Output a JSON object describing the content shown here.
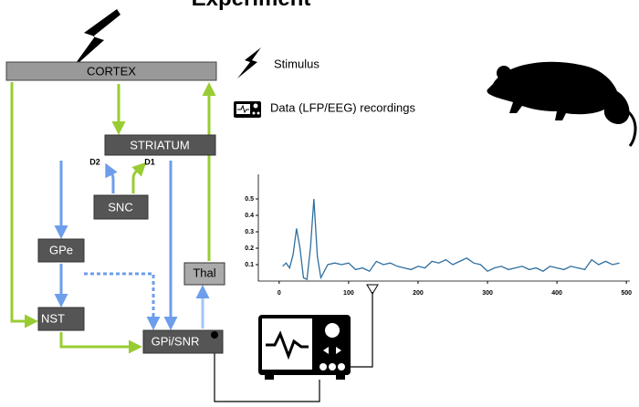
{
  "title": "Experiment",
  "nodes": {
    "cortex": "CORTEX",
    "striatum": "STRIATUM",
    "d2": "D2",
    "d1": "D1",
    "snc": "SNC",
    "gpe": "GPe",
    "nst": "NST",
    "gpi": "GPi/SNR",
    "thal": "Thal"
  },
  "legend": {
    "stimulus": "Stimulus",
    "recordings": "Data (LFP/EEG) recordings"
  },
  "chart": {
    "type": "line",
    "color": "#2f6f9f",
    "x": [
      5,
      10,
      15,
      20,
      25,
      30,
      35,
      40,
      45,
      50,
      55,
      60,
      70,
      80,
      90,
      100,
      110,
      120,
      130,
      140,
      150,
      160,
      170,
      180,
      190,
      200,
      210,
      220,
      230,
      240,
      250,
      260,
      270,
      280,
      290,
      300,
      310,
      320,
      330,
      340,
      350,
      360,
      370,
      380,
      390,
      400,
      410,
      420,
      430,
      440,
      450,
      460,
      470,
      480,
      490
    ],
    "values": [
      0.09,
      0.11,
      0.08,
      0.16,
      0.32,
      0.2,
      0.02,
      0.01,
      0.2,
      0.5,
      0.15,
      0.02,
      0.1,
      0.11,
      0.1,
      0.11,
      0.07,
      0.08,
      0.06,
      0.12,
      0.1,
      0.11,
      0.09,
      0.08,
      0.07,
      0.09,
      0.08,
      0.12,
      0.11,
      0.13,
      0.1,
      0.12,
      0.14,
      0.11,
      0.1,
      0.06,
      0.08,
      0.09,
      0.07,
      0.08,
      0.09,
      0.07,
      0.08,
      0.06,
      0.09,
      0.08,
      0.07,
      0.09,
      0.08,
      0.07,
      0.13,
      0.1,
      0.12,
      0.1,
      0.11
    ],
    "xlim": [
      -30,
      505
    ],
    "ylim": [
      0,
      0.65
    ],
    "xticks": [
      0,
      100,
      200,
      300,
      400,
      500
    ],
    "yticks": [
      0.1,
      0.2,
      0.3,
      0.4,
      0.5
    ]
  }
}
